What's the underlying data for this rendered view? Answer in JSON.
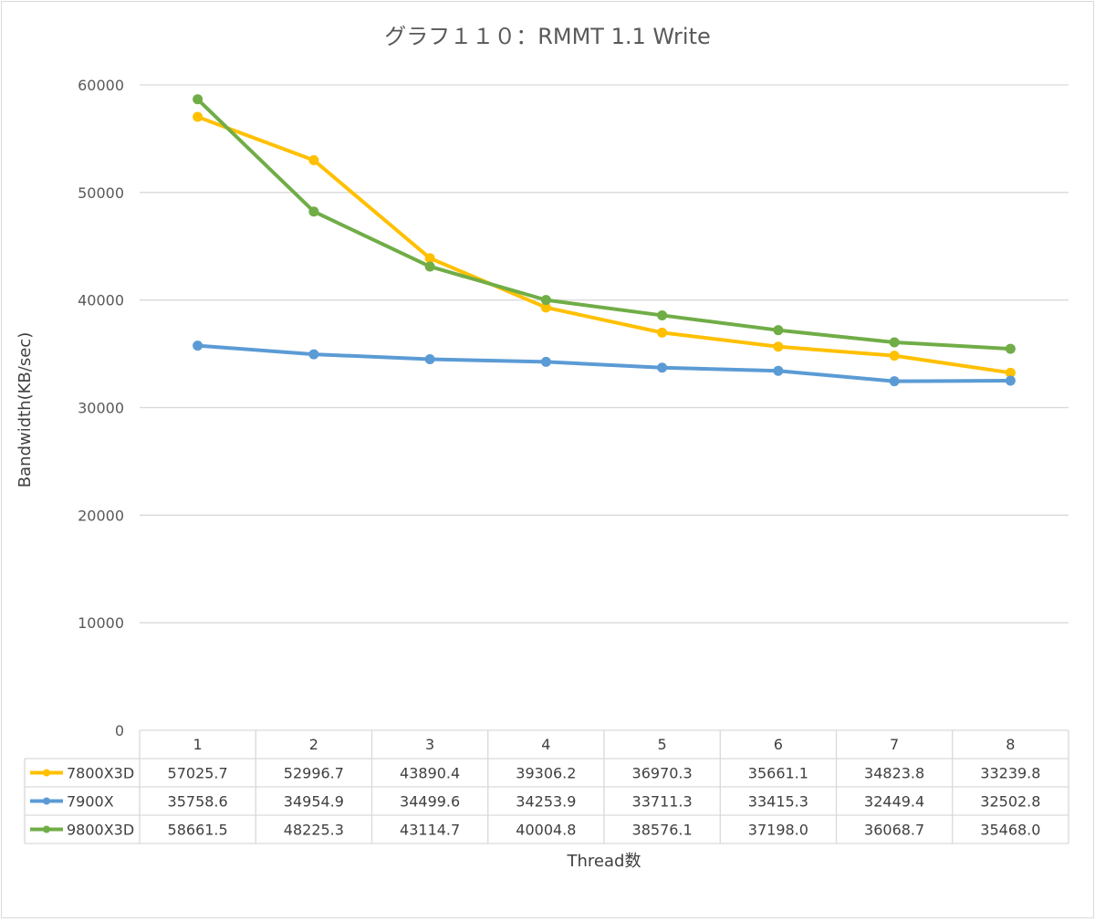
{
  "chart_data": {
    "type": "line",
    "title": "グラフ１１０：RMMT 1.1 Write",
    "xlabel": "Thread数",
    "ylabel": "Bandwidth(KB/sec)",
    "ylim": [
      0,
      60000
    ],
    "yticks": [
      0,
      10000,
      20000,
      30000,
      40000,
      50000,
      60000
    ],
    "grid": true,
    "legend": "data-table",
    "categories": [
      "1",
      "2",
      "3",
      "4",
      "5",
      "6",
      "7",
      "8"
    ],
    "series": [
      {
        "name": "7800X3D",
        "color": "#ffc000",
        "values": [
          57025.7,
          52996.7,
          43890.4,
          39306.2,
          36970.3,
          35661.1,
          34823.8,
          33239.8
        ],
        "labels": [
          "57025.7",
          "52996.7",
          "43890.4",
          "39306.2",
          "36970.3",
          "35661.1",
          "34823.8",
          "33239.8"
        ]
      },
      {
        "name": "7900X",
        "color": "#5b9bd5",
        "values": [
          35758.6,
          34954.9,
          34499.6,
          34253.9,
          33711.3,
          33415.3,
          32449.4,
          32502.8
        ],
        "labels": [
          "35758.6",
          "34954.9",
          "34499.6",
          "34253.9",
          "33711.3",
          "33415.3",
          "32449.4",
          "32502.8"
        ]
      },
      {
        "name": "9800X3D",
        "color": "#70ad47",
        "values": [
          58661.5,
          48225.3,
          43114.7,
          40004.8,
          38576.1,
          37198.0,
          36068.7,
          35468.0
        ],
        "labels": [
          "58661.5",
          "48225.3",
          "43114.7",
          "40004.8",
          "38576.1",
          "37198.0",
          "36068.7",
          "35468.0"
        ]
      }
    ]
  }
}
